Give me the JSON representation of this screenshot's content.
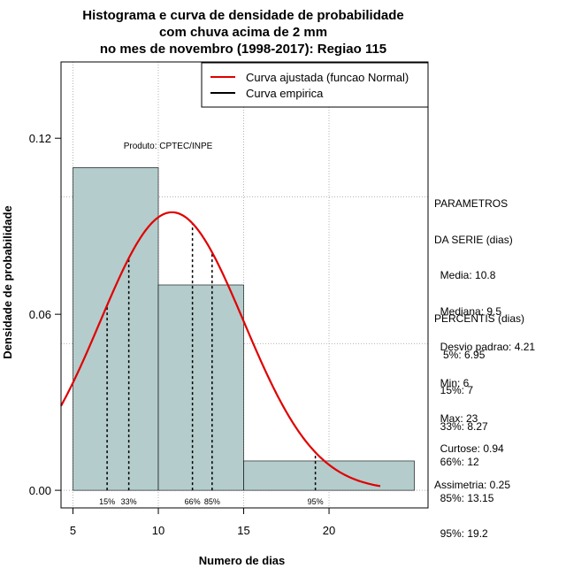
{
  "chart_data": {
    "type": "bar",
    "title": [
      "Histograma e curva de densidade de probabilidade",
      "com chuva acima de 2 mm",
      "no mes de novembro (1998-2017): Regiao 115"
    ],
    "xlabel": "Numero de dias",
    "ylabel": "Densidade de probabilidade",
    "xlim": [
      4.3,
      25.8
    ],
    "ylim": [
      -0.006,
      0.146
    ],
    "x_ticks": [
      5,
      10,
      15,
      20
    ],
    "y_ticks": [
      0.0,
      0.06,
      0.12
    ],
    "y_tick_labels": [
      "0.00",
      "0.06",
      "0.12"
    ],
    "grid_x": [
      5,
      10,
      15,
      20
    ],
    "grid_y": [
      0.0,
      0.05,
      0.1
    ],
    "bins": [
      {
        "from": 5,
        "to": 10,
        "density": 0.11
      },
      {
        "from": 10,
        "to": 15,
        "density": 0.07
      },
      {
        "from": 15,
        "to": 25,
        "density": 0.01
      }
    ],
    "normal_curve": {
      "mean": 10.8,
      "sd": 4.21,
      "x_from": 4.3,
      "x_to": 23
    },
    "percentile_lines": [
      {
        "label": "15%",
        "x": 7
      },
      {
        "label": "33%",
        "x": 8.27
      },
      {
        "label": "66%",
        "x": 12
      },
      {
        "label": "85%",
        "x": 13.15
      },
      {
        "label": "95%",
        "x": 19.2
      }
    ],
    "legend": [
      {
        "label": "Curva ajustada (funcao Normal)",
        "color": "#e00000"
      },
      {
        "label": "Curva empirica",
        "color": "#000000"
      }
    ],
    "legend_position": "top-right",
    "annotation": "Produto: CPTEC/INPE",
    "colors": {
      "bar_fill": "#b4cccc",
      "curve": "#e00000",
      "grid": "#b4b4b4"
    }
  },
  "stats_panel": {
    "parametros": [
      "PARAMETROS",
      "DA SERIE (dias)",
      "  Media: 10.8",
      "  Mediana: 9.5",
      "  Desvio padrao: 4.21",
      "  Min: 6",
      "  Max: 23"
    ],
    "percentis": [
      "PERCENTIS (dias)",
      "   5%: 6.95",
      "  15%: 7",
      "  33%: 8.27",
      "  66%: 12",
      "  85%: 13.15",
      "  95%: 19.2"
    ],
    "curtose": "  Curtose: 0.94",
    "assimetria": "Assimetria: 0.25"
  }
}
